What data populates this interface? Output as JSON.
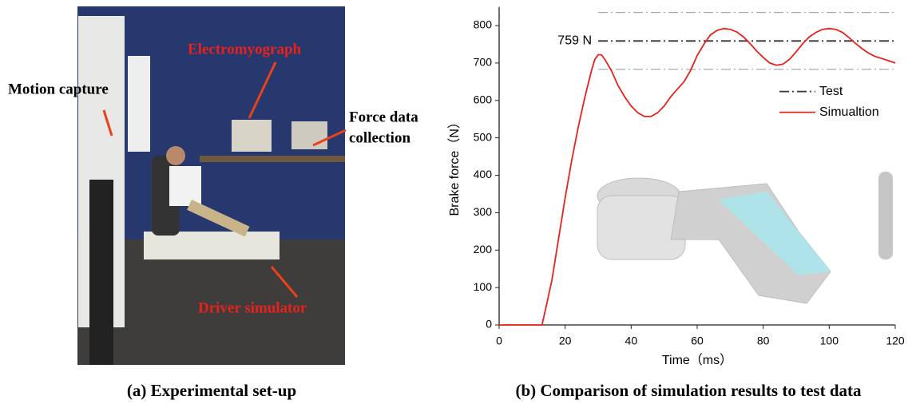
{
  "photo": {
    "labels": [
      {
        "lines": [
          "Motion capture"
        ],
        "color": "#000000"
      },
      {
        "lines": [
          "Electromyograph"
        ],
        "color": "#e8211b"
      },
      {
        "lines": [
          "Force data",
          "collection"
        ],
        "color": "#000000"
      },
      {
        "lines": [
          "Driver simulator"
        ],
        "color": "#e8211b"
      }
    ]
  },
  "captions": [
    "(a) Experimental set-up",
    "(b) Comparison of simulation results to test data"
  ],
  "chart_data": {
    "type": "line",
    "x_label": "Time（ms）",
    "y_label": "Brake force（N）",
    "xlim": [
      0,
      120
    ],
    "xticks": [
      0,
      20,
      40,
      60,
      80,
      100,
      120
    ],
    "ylim": [
      0,
      850
    ],
    "yticks": [
      0,
      100,
      200,
      300,
      400,
      500,
      600,
      700,
      800
    ],
    "series": [
      {
        "name": "Test",
        "color": "#333333",
        "dash": "dash-dot",
        "x": [
          30,
          120
        ],
        "values": [
          759,
          759
        ]
      },
      {
        "name": "Simualtion",
        "color": "#e8211b",
        "dash": "solid",
        "x": [
          0,
          13,
          14,
          16,
          18,
          20,
          22,
          24,
          26,
          28,
          29,
          30,
          31,
          32,
          34,
          36,
          38,
          40,
          42,
          44,
          46,
          48,
          50,
          52,
          54,
          56,
          58,
          60,
          62,
          64,
          66,
          68,
          70,
          72,
          74,
          76,
          78,
          80,
          82,
          84,
          86,
          88,
          90,
          92,
          94,
          96,
          98,
          100,
          102,
          104,
          106,
          108,
          110,
          112,
          114,
          116,
          118,
          120
        ],
        "values": [
          0,
          0,
          40,
          120,
          230,
          340,
          440,
          530,
          610,
          680,
          710,
          722,
          722,
          710,
          680,
          640,
          610,
          585,
          567,
          557,
          557,
          567,
          585,
          610,
          630,
          650,
          680,
          720,
          750,
          775,
          787,
          792,
          790,
          783,
          770,
          752,
          732,
          715,
          700,
          694,
          697,
          710,
          730,
          752,
          770,
          782,
          790,
          792,
          790,
          782,
          768,
          752,
          738,
          726,
          717,
          712,
          706,
          700
        ]
      }
    ],
    "bounds": [
      835,
      683
    ],
    "bounds_color": "#aaaaaa",
    "bounds_start": 30,
    "annotations": [
      {
        "text": "759 N",
        "value": 759
      }
    ],
    "legend": "upper right"
  }
}
